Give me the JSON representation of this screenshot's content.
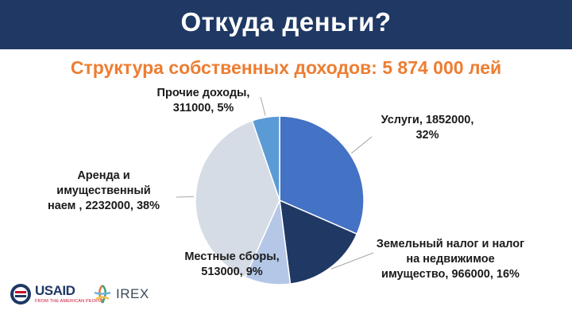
{
  "header": {
    "title": "Откуда деньги?"
  },
  "chart_data": {
    "type": "pie",
    "title": "Структура собственных доходов: 5 874 000 лей",
    "slices": [
      {
        "label_lines": [
          "Услуги, 1852000,",
          "32%"
        ],
        "value": 1852000,
        "percent": 32,
        "color": "#4472c4"
      },
      {
        "label_lines": [
          "Земельный налог и налог",
          "на недвижимое",
          "имущество, 966000, 16%"
        ],
        "value": 966000,
        "percent": 16,
        "color": "#1f3864"
      },
      {
        "label_lines": [
          "Местные сборы,",
          "513000, 9%"
        ],
        "value": 513000,
        "percent": 9,
        "color": "#b4c7e7"
      },
      {
        "label_lines": [
          "Аренда и",
          "имущественный",
          "наем , 2232000, 38%"
        ],
        "value": 2232000,
        "percent": 38,
        "color": "#d6dce5"
      },
      {
        "label_lines": [
          "Прочие доходы,",
          "311000, 5%"
        ],
        "value": 311000,
        "percent": 5,
        "color": "#5b9bd5"
      }
    ]
  },
  "footer": {
    "usaid": {
      "word": "USAID",
      "tagline": "FROM THE AMERICAN PEOPLE"
    },
    "irex": {
      "word": "IREX"
    }
  }
}
